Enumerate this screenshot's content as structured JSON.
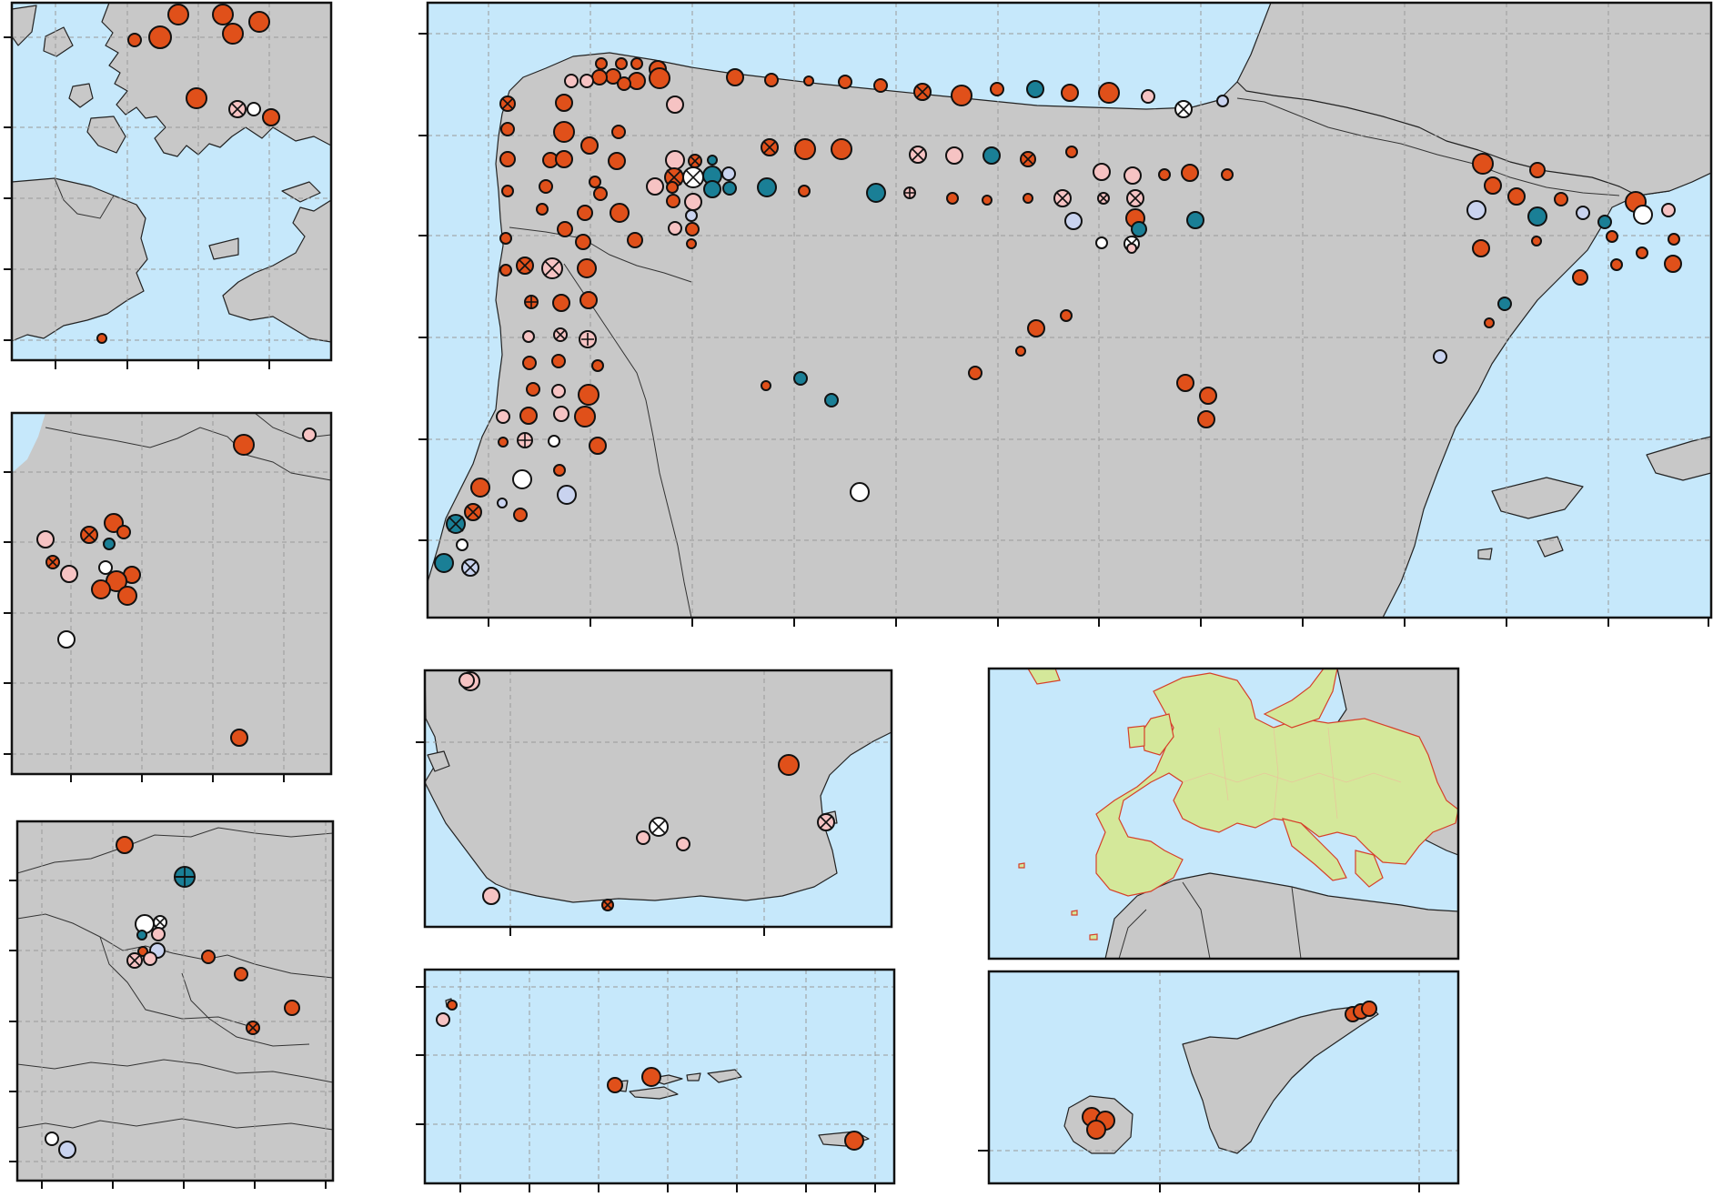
{
  "colors": {
    "sea": "#c6e8fb",
    "land": "#c8c8c8",
    "eu_land": "#d4e89a",
    "eu_coast": "#d6402a",
    "orange": "#e0501a",
    "pink": "#f6c3c3",
    "teal": "#1a7f96",
    "lavender": "#c9d3ef",
    "white": "#ffffff"
  },
  "panels": [
    {
      "id": "scotland",
      "name": "panel-scotland"
    },
    {
      "id": "france",
      "name": "panel-france"
    },
    {
      "id": "pyrenees",
      "name": "panel-pyrenees"
    },
    {
      "id": "iberia",
      "name": "panel-iberia"
    },
    {
      "id": "andalusia",
      "name": "panel-andalusia"
    },
    {
      "id": "azores",
      "name": "panel-azores"
    },
    {
      "id": "europe",
      "name": "panel-europe-overview"
    },
    {
      "id": "canaries",
      "name": "panel-canaries"
    }
  ]
}
